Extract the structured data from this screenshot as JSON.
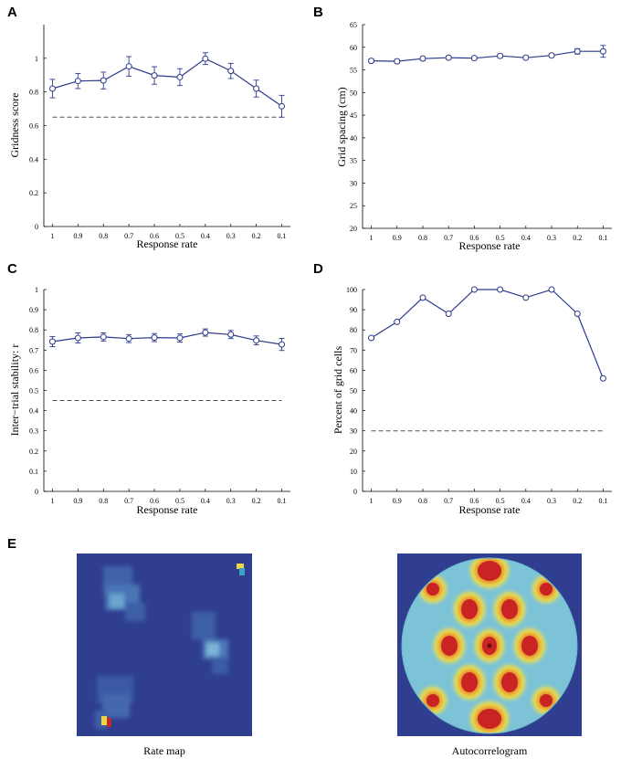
{
  "chart_data": [
    {
      "panel": "A",
      "type": "line",
      "xlabel": "Response rate",
      "ylabel": "Gridness score",
      "categories": [
        "1",
        "0.9",
        "0.8",
        "0.7",
        "0.6",
        "0.5",
        "0.4",
        "0.3",
        "0.2",
        "0.1"
      ],
      "values": [
        0.82,
        0.865,
        0.868,
        0.952,
        0.898,
        0.888,
        0.998,
        0.925,
        0.82,
        0.715
      ],
      "errors": [
        0.055,
        0.045,
        0.05,
        0.058,
        0.052,
        0.05,
        0.035,
        0.045,
        0.05,
        0.065
      ],
      "yticks": [
        "0",
        "0.2",
        "0.4",
        "0.6",
        "0.8",
        "1"
      ],
      "ylim": [
        0,
        1.2
      ],
      "threshold": 0.65
    },
    {
      "panel": "B",
      "type": "line",
      "xlabel": "Response rate",
      "ylabel": "Grid spacing (cm)",
      "categories": [
        "1",
        "0.9",
        "0.8",
        "0.7",
        "0.6",
        "0.5",
        "0.4",
        "0.3",
        "0.2",
        "0.1"
      ],
      "values": [
        57.0,
        56.9,
        57.5,
        57.7,
        57.6,
        58.1,
        57.7,
        58.2,
        59.1,
        59.1
      ],
      "errors": [
        0.4,
        0.4,
        0.4,
        0.4,
        0.4,
        0.45,
        0.4,
        0.4,
        0.6,
        1.3
      ],
      "yticks": [
        "20",
        "25",
        "30",
        "35",
        "40",
        "45",
        "50",
        "55",
        "60",
        "65"
      ],
      "ylim": [
        20,
        65
      ]
    },
    {
      "panel": "C",
      "type": "line",
      "xlabel": "Response rate",
      "ylabel": "Inter−trial stability: r",
      "categories": [
        "1",
        "0.9",
        "0.8",
        "0.7",
        "0.6",
        "0.5",
        "0.4",
        "0.3",
        "0.2",
        "0.1"
      ],
      "values": [
        0.742,
        0.76,
        0.765,
        0.757,
        0.762,
        0.76,
        0.787,
        0.777,
        0.748,
        0.728
      ],
      "errors": [
        0.025,
        0.025,
        0.02,
        0.02,
        0.02,
        0.02,
        0.018,
        0.02,
        0.022,
        0.03
      ],
      "yticks": [
        "0",
        "0.1",
        "0.2",
        "0.3",
        "0.4",
        "0.5",
        "0.6",
        "0.7",
        "0.8",
        "0.9",
        "1"
      ],
      "ylim": [
        0,
        1
      ],
      "threshold": 0.45
    },
    {
      "panel": "D",
      "type": "line",
      "xlabel": "Response rate",
      "ylabel": "Percent of grid cells",
      "categories": [
        "1",
        "0.9",
        "0.8",
        "0.7",
        "0.6",
        "0.5",
        "0.4",
        "0.3",
        "0.2",
        "0.1"
      ],
      "values": [
        76,
        84,
        96,
        88,
        100,
        100,
        96,
        100,
        88,
        56
      ],
      "errors": [
        0,
        0,
        0,
        0,
        0,
        0,
        0,
        0,
        0,
        0
      ],
      "yticks": [
        "0",
        "10",
        "20",
        "30",
        "40",
        "50",
        "60",
        "70",
        "80",
        "90",
        "100"
      ],
      "ylim": [
        0,
        100
      ],
      "threshold": 30
    }
  ],
  "panel_e": {
    "letter": "E",
    "rate_map_caption": "Rate map",
    "autocorrelogram_caption": "Autocorrelogram"
  },
  "colors": {
    "series": "#2b3a8c",
    "threshold": "#555555",
    "heat_background": "#2f3e8f"
  }
}
